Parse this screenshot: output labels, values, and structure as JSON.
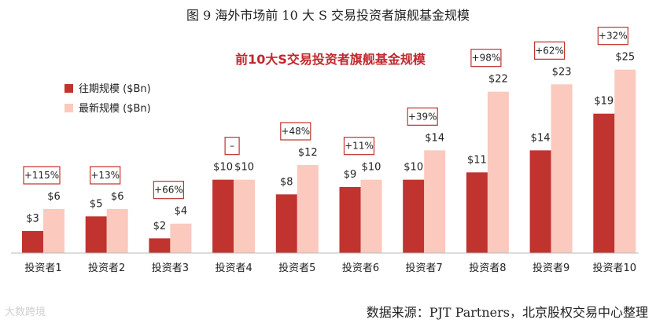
{
  "figure": {
    "caption": "图 9 海外市场前 10 大 S 交易投资者旗舰基金规模",
    "source": "数据来源：PJT Partners，北京股权交易中心整理",
    "watermark": "大数跨境"
  },
  "colors": {
    "prior": "#c0332f",
    "latest": "#fbc9bd",
    "title": "#c0282d",
    "box": "#c0332f"
  },
  "chart_data": {
    "type": "bar",
    "title": "前10大S交易投资者旗舰基金规模",
    "categories": [
      "投资者1",
      "投资者2",
      "投资者3",
      "投资者4",
      "投资者5",
      "投资者6",
      "投资者7",
      "投资者8",
      "投资者9",
      "投资者10"
    ],
    "series": [
      {
        "name": "往期规模 ($Bn)",
        "values": [
          3,
          5,
          2,
          10,
          8,
          9,
          10,
          11,
          14,
          19
        ],
        "labels": [
          "$3",
          "$5",
          "$2",
          "$10",
          "$8",
          "$9",
          "$10",
          "$11",
          "$14",
          "$19"
        ]
      },
      {
        "name": "最新规模 ($Bn)",
        "values": [
          6,
          6,
          4,
          10,
          12,
          10,
          14,
          22,
          23,
          25
        ],
        "labels": [
          "$6",
          "$6",
          "$4",
          "$10",
          "$12",
          "$10",
          "$14",
          "$22",
          "$23",
          "$25"
        ]
      }
    ],
    "changes": [
      "+115%",
      "+13%",
      "+66%",
      "–",
      "+48%",
      "+11%",
      "+39%",
      "+98%",
      "+62%",
      "+32%"
    ],
    "ylim": [
      0,
      27
    ],
    "legend_position": "top-left",
    "grid": false
  }
}
